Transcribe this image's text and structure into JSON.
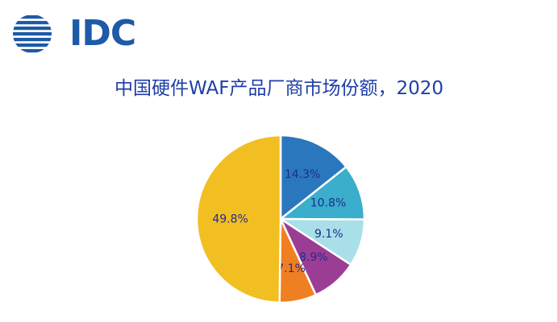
{
  "brand": {
    "logo_text": "IDC"
  },
  "title": "中国硬件WAF产品厂商市场份额，2020",
  "colors": {
    "title": "#1f3ea8",
    "logo": "#1d5aa8",
    "label": "#1f2d8f"
  },
  "chart_data": {
    "type": "pie",
    "title": "中国硬件WAF产品厂商市场份额，2020",
    "start_angle_deg": 0,
    "direction": "clockwise",
    "slices": [
      {
        "value": 14.3,
        "label": "14.3%",
        "color": "#2a77bd"
      },
      {
        "value": 10.8,
        "label": "10.8%",
        "color": "#3aaecb"
      },
      {
        "value": 9.1,
        "label": "9.1%",
        "color": "#a8dfe9"
      },
      {
        "value": 8.9,
        "label": "8.9%",
        "color": "#9b3d95"
      },
      {
        "value": 7.1,
        "label": "7.1%",
        "color": "#f07f22"
      },
      {
        "value": 49.8,
        "label": "49.8%",
        "color": "#f2bf22"
      }
    ]
  }
}
